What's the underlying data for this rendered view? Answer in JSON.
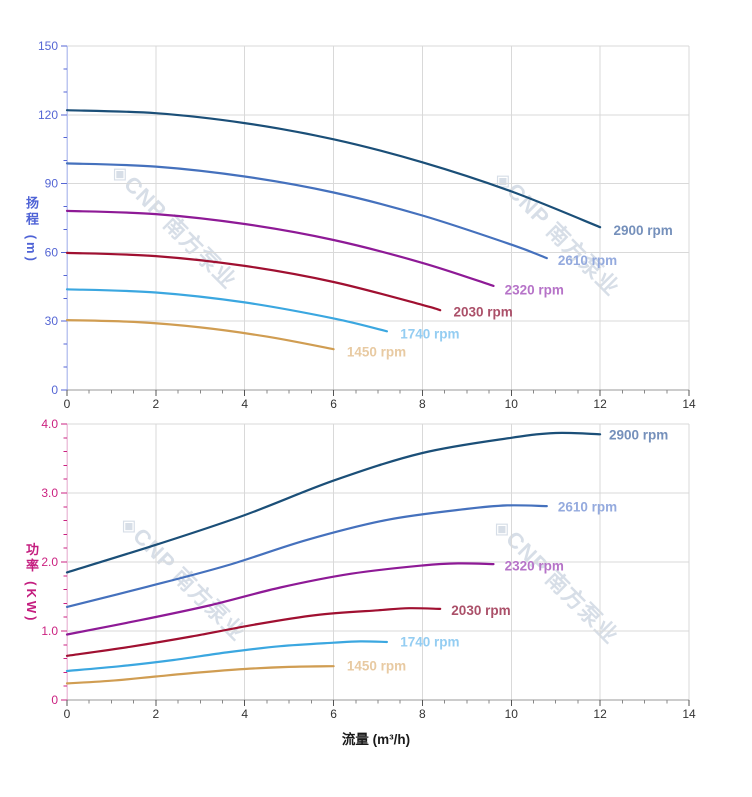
{
  "watermark": {
    "text": "◈CNP 南方泵业"
  },
  "chart_data": [
    {
      "id": "head-curve-chart",
      "type": "line",
      "title": "",
      "xlabel": "",
      "ylabel": "扬程 (m)",
      "xlim": [
        0,
        14
      ],
      "ylim": [
        0,
        150
      ],
      "grid": true,
      "legend_position": "end-of-line-labels",
      "x_ticks": {
        "major": [
          0,
          2,
          4,
          6,
          8,
          10,
          12,
          14
        ],
        "labels": [
          "0",
          "2",
          "4",
          "6",
          "8",
          "10",
          "12",
          "14"
        ],
        "minor_step": 0.5
      },
      "y_ticks": {
        "major": [
          0,
          30,
          60,
          90,
          120,
          150
        ],
        "labels": [
          "0",
          "30",
          "60",
          "90",
          "120",
          "150"
        ],
        "minor_step": 10
      },
      "colors": {
        "tick_label": "#5566d4",
        "axis_line": "#bcc6f0",
        "x_tick_label": "#333333",
        "x_axis_line": "#999999",
        "grid": "#d9d9d9"
      },
      "series": [
        {
          "name": "2900 rpm",
          "color": "#1b4f78",
          "label_color": "#7590bb",
          "label_pos": [
            12.3,
            69.5
          ],
          "points": [
            [
              0,
              122
            ],
            [
              2,
              120.7
            ],
            [
              4,
              116.4
            ],
            [
              6,
              109.3
            ],
            [
              8,
              99.3
            ],
            [
              10,
              86.6
            ],
            [
              12,
              71
            ]
          ]
        },
        {
          "name": "2610 rpm",
          "color": "#4571bd",
          "label_color": "#94aade",
          "label_pos": [
            11.05,
            56.5
          ],
          "points": [
            [
              0,
              98.8
            ],
            [
              2,
              97.4
            ],
            [
              4,
              93.1
            ],
            [
              6,
              86.1
            ],
            [
              8,
              76.1
            ],
            [
              10,
              63.4
            ],
            [
              10.8,
              57.5
            ]
          ]
        },
        {
          "name": "2320 rpm",
          "color": "#8e1a96",
          "label_color": "#b673c8",
          "label_pos": [
            9.85,
            43.5
          ],
          "points": [
            [
              0,
              78.1
            ],
            [
              2,
              76.7
            ],
            [
              4,
              72.4
            ],
            [
              6,
              65.4
            ],
            [
              8,
              55.4
            ],
            [
              9.6,
              45.4
            ]
          ]
        },
        {
          "name": "2030 rpm",
          "color": "#a01031",
          "label_color": "#ab5069",
          "label_pos": [
            8.7,
            34
          ],
          "points": [
            [
              0,
              59.8
            ],
            [
              2,
              58.4
            ],
            [
              4,
              54.1
            ],
            [
              6,
              47.1
            ],
            [
              8,
              37.1
            ],
            [
              8.4,
              34.8
            ]
          ]
        },
        {
          "name": "1740 rpm",
          "color": "#3ba7e0",
          "label_color": "#94cdf2",
          "label_pos": [
            7.5,
            24.5
          ],
          "points": [
            [
              0,
              43.9
            ],
            [
              2,
              42.5
            ],
            [
              4,
              38.2
            ],
            [
              6,
              31.2
            ],
            [
              7.2,
              25.6
            ]
          ]
        },
        {
          "name": "1450 rpm",
          "color": "#d09d52",
          "label_color": "#e8caa2",
          "label_pos": [
            6.3,
            16.5
          ],
          "points": [
            [
              0,
              30.5
            ],
            [
              1.5,
              29.7
            ],
            [
              3,
              27.3
            ],
            [
              4.5,
              23.3
            ],
            [
              6,
              17.8
            ]
          ]
        }
      ]
    },
    {
      "id": "power-curve-chart",
      "type": "line",
      "title": "",
      "xlabel": "流量 (m³/h)",
      "ylabel": "功率 (KW)",
      "xlim": [
        0,
        14
      ],
      "ylim": [
        0,
        4
      ],
      "grid": true,
      "legend_position": "end-of-line-labels",
      "x_ticks": {
        "major": [
          0,
          2,
          4,
          6,
          8,
          10,
          12,
          14
        ],
        "labels": [
          "0",
          "2",
          "4",
          "6",
          "8",
          "10",
          "12",
          "14"
        ],
        "minor_step": 0.5
      },
      "y_ticks": {
        "major": [
          0,
          1,
          2,
          3,
          4
        ],
        "labels": [
          "0",
          "1.0",
          "2.0",
          "3.0",
          "4.0"
        ],
        "minor_step": 0.2
      },
      "colors": {
        "tick_label": "#cb2180",
        "axis_line": "#edc3dc",
        "x_tick_label": "#333333",
        "x_axis_line": "#999999",
        "grid": "#d9d9d9"
      },
      "series": [
        {
          "name": "2900 rpm",
          "color": "#1b4f78",
          "label_color": "#7590bb",
          "label_pos": [
            12.2,
            3.84
          ],
          "points": [
            [
              0,
              1.85
            ],
            [
              2,
              2.25
            ],
            [
              4,
              2.68
            ],
            [
              6,
              3.18
            ],
            [
              8,
              3.58
            ],
            [
              10,
              3.8
            ],
            [
              11,
              3.87
            ],
            [
              12,
              3.85
            ]
          ]
        },
        {
          "name": "2610 rpm",
          "color": "#4571bd",
          "label_color": "#94aade",
          "label_pos": [
            11.05,
            2.8
          ],
          "points": [
            [
              0,
              1.35
            ],
            [
              1.8,
              1.64
            ],
            [
              3.6,
              1.95
            ],
            [
              5.4,
              2.32
            ],
            [
              7.2,
              2.61
            ],
            [
              9,
              2.77
            ],
            [
              9.9,
              2.82
            ],
            [
              10.8,
              2.81
            ]
          ]
        },
        {
          "name": "2320 rpm",
          "color": "#8e1a96",
          "label_color": "#b673c8",
          "label_pos": [
            9.85,
            1.94
          ],
          "points": [
            [
              0,
              0.95
            ],
            [
              1.6,
              1.15
            ],
            [
              3.2,
              1.37
            ],
            [
              4.8,
              1.63
            ],
            [
              6.4,
              1.83
            ],
            [
              8,
              1.95
            ],
            [
              8.8,
              1.98
            ],
            [
              9.6,
              1.97
            ]
          ]
        },
        {
          "name": "2030 rpm",
          "color": "#a01031",
          "label_color": "#ab5069",
          "label_pos": [
            8.65,
            1.3
          ],
          "points": [
            [
              0,
              0.64
            ],
            [
              1.4,
              0.77
            ],
            [
              2.8,
              0.92
            ],
            [
              4.2,
              1.09
            ],
            [
              5.6,
              1.23
            ],
            [
              7,
              1.3
            ],
            [
              7.7,
              1.33
            ],
            [
              8.4,
              1.32
            ]
          ]
        },
        {
          "name": "1740 rpm",
          "color": "#3ba7e0",
          "label_color": "#94cdf2",
          "label_pos": [
            7.5,
            0.84
          ],
          "points": [
            [
              0,
              0.42
            ],
            [
              1.2,
              0.49
            ],
            [
              2.4,
              0.58
            ],
            [
              3.6,
              0.69
            ],
            [
              4.8,
              0.78
            ],
            [
              6,
              0.83
            ],
            [
              6.6,
              0.85
            ],
            [
              7.2,
              0.84
            ]
          ]
        },
        {
          "name": "1450 rpm",
          "color": "#d09d52",
          "label_color": "#e8caa2",
          "label_pos": [
            6.3,
            0.49
          ],
          "points": [
            [
              0,
              0.24
            ],
            [
              1,
              0.28
            ],
            [
              2,
              0.34
            ],
            [
              3,
              0.4
            ],
            [
              4,
              0.45
            ],
            [
              5,
              0.48
            ],
            [
              6,
              0.49
            ]
          ]
        }
      ]
    }
  ]
}
